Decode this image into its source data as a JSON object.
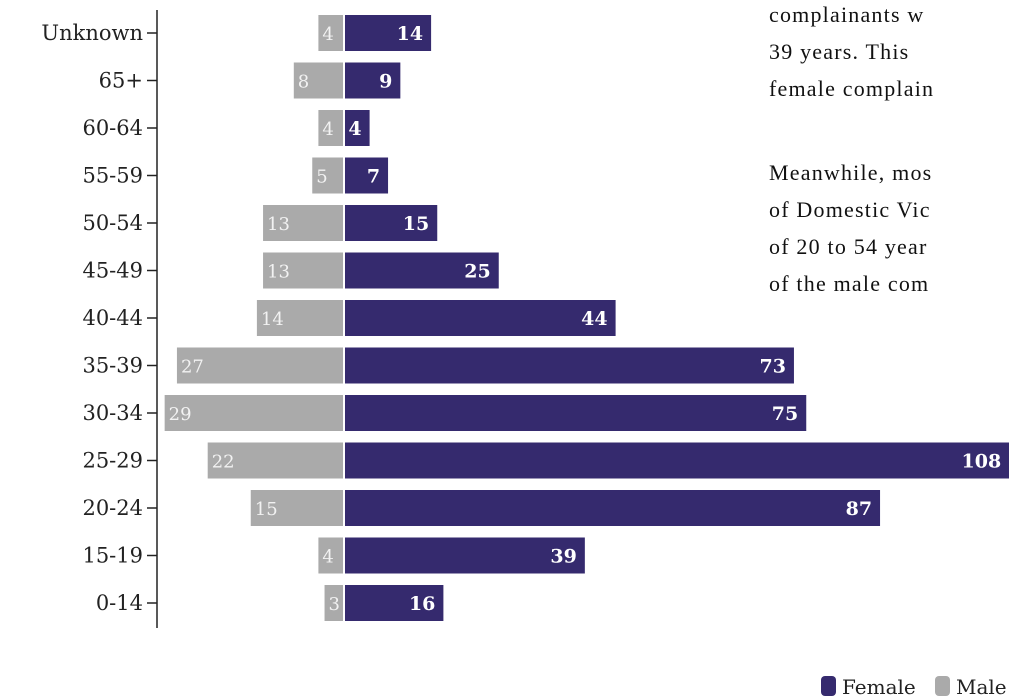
{
  "chart_data": {
    "type": "bar",
    "orientation": "horizontal",
    "layout": "diverging",
    "categories": [
      "Unknown",
      "65+",
      "60-64",
      "55-59",
      "50-54",
      "45-49",
      "40-44",
      "35-39",
      "30-34",
      "25-29",
      "20-24",
      "15-19",
      "0-14"
    ],
    "series": [
      {
        "name": "Female",
        "color": "#352a6e",
        "values": [
          14,
          9,
          4,
          7,
          15,
          25,
          44,
          73,
          75,
          108,
          87,
          39,
          16
        ]
      },
      {
        "name": "Male",
        "color": "#aaaaaa",
        "values": [
          4,
          8,
          4,
          5,
          13,
          13,
          14,
          27,
          29,
          22,
          15,
          4,
          3
        ]
      }
    ],
    "legend": {
      "placement": "bottom-right",
      "items": [
        "Female",
        "Male"
      ]
    },
    "grid": false,
    "title": "",
    "xlabel": "",
    "ylabel": ""
  },
  "side_text": {
    "lines": [
      "complainants w",
      "39 years. This",
      "female complain",
      "",
      "Meanwhile, mos",
      "of Domestic Vic",
      "of 20 to 54 year",
      "of the male com"
    ]
  }
}
